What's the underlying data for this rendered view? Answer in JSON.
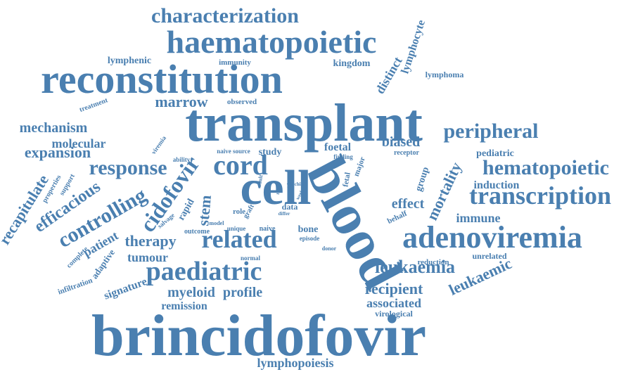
{
  "colors": {
    "word": "#4a7fb0",
    "background": "#ffffff"
  },
  "words": [
    {
      "text": "brincidofovir"
    },
    {
      "text": "transplant"
    },
    {
      "text": "blood"
    },
    {
      "text": "reconstitution"
    },
    {
      "text": "cell"
    },
    {
      "text": "haematopoietic"
    },
    {
      "text": "adenoviremia"
    },
    {
      "text": "characterization"
    },
    {
      "text": "transcription"
    },
    {
      "text": "paediatric"
    },
    {
      "text": "hematopoietic"
    },
    {
      "text": "cord"
    },
    {
      "text": "related"
    },
    {
      "text": "peripheral"
    },
    {
      "text": "controlling"
    },
    {
      "text": "leukaemia"
    },
    {
      "text": "cidofovir"
    },
    {
      "text": "response"
    },
    {
      "text": "recipient"
    },
    {
      "text": "expansion"
    },
    {
      "text": "mechanism"
    },
    {
      "text": "marrow"
    },
    {
      "text": "efficacious"
    },
    {
      "text": "mortality"
    },
    {
      "text": "leukaemic"
    },
    {
      "text": "therapy"
    },
    {
      "text": "profile"
    },
    {
      "text": "myeloid"
    },
    {
      "text": "lymphopoiesis"
    },
    {
      "text": "recapitulate"
    },
    {
      "text": "associated"
    },
    {
      "text": "stem"
    },
    {
      "text": "tumour"
    },
    {
      "text": "biased"
    },
    {
      "text": "immune"
    },
    {
      "text": "induction"
    },
    {
      "text": "effect"
    },
    {
      "text": "lymphocyte"
    },
    {
      "text": "distinct"
    },
    {
      "text": "molecular"
    },
    {
      "text": "patient"
    },
    {
      "text": "signature"
    },
    {
      "text": "remission"
    },
    {
      "text": "lymphenic"
    },
    {
      "text": "kingdom"
    },
    {
      "text": "immunity"
    },
    {
      "text": "lymphoma"
    },
    {
      "text": "observed"
    },
    {
      "text": "treatment"
    },
    {
      "text": "viremia"
    },
    {
      "text": "foetal"
    },
    {
      "text": "study"
    },
    {
      "text": "data"
    },
    {
      "text": "bone"
    },
    {
      "text": "group"
    },
    {
      "text": "rapid"
    },
    {
      "text": "pediatric"
    },
    {
      "text": "receptor"
    },
    {
      "text": "virological"
    },
    {
      "text": "unrelated"
    },
    {
      "text": "reduction"
    },
    {
      "text": "behalf"
    },
    {
      "text": "adaptive"
    },
    {
      "text": "infiltration"
    },
    {
      "text": "complete"
    },
    {
      "text": "properties"
    },
    {
      "text": "support"
    },
    {
      "text": "salvage"
    },
    {
      "text": "outcome"
    },
    {
      "text": "model"
    },
    {
      "text": "unique"
    },
    {
      "text": "naive"
    },
    {
      "text": "episode"
    },
    {
      "text": "donor"
    },
    {
      "text": "normal"
    },
    {
      "text": "role"
    },
    {
      "text": "graft"
    },
    {
      "text": "ability"
    },
    {
      "text": "naive source"
    },
    {
      "text": "finding"
    },
    {
      "text": "major"
    },
    {
      "text": "fetal"
    },
    {
      "text": "adult"
    },
    {
      "text": "viral"
    },
    {
      "text": "child"
    },
    {
      "text": "week"
    },
    {
      "text": "differ"
    },
    {
      "text": "test"
    }
  ]
}
